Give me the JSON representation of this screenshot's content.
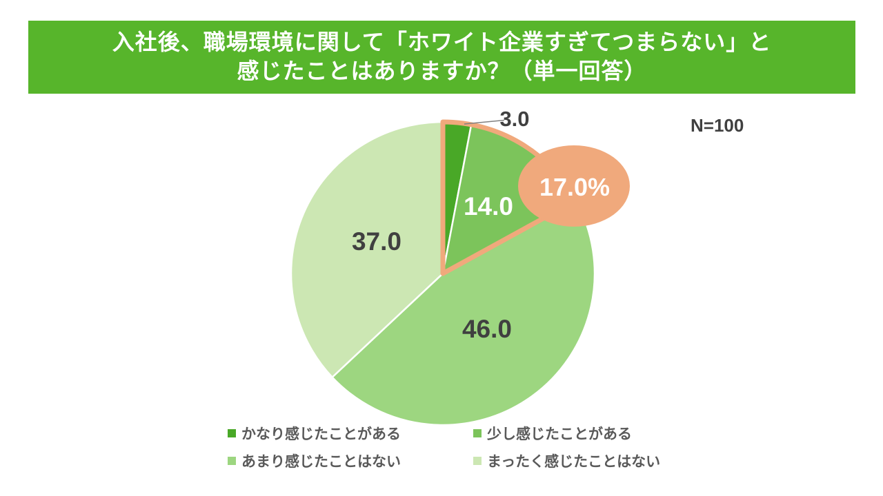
{
  "header": {
    "title_line1": "入社後、職場環境に関して「ホワイト企業すぎてつまらない」と",
    "title_line2": "感じたことはありますか？（単一回答）",
    "bg_color": "#57b52b",
    "text_color": "#ffffff"
  },
  "chart_data": {
    "type": "pie",
    "title": "入社後、職場環境に関して「ホワイト企業すぎてつまらない」と感じたことはありますか？（単一回答）",
    "sample_label": "N=100",
    "sample_size": 100,
    "start_angle_deg": -90,
    "direction": "clockwise",
    "slices": [
      {
        "label": "かなり感じたことがある",
        "value": 3.0,
        "display": "3.0",
        "color": "#49a827"
      },
      {
        "label": "少し感じたことがある",
        "value": 14.0,
        "display": "14.0",
        "color": "#7cc45b"
      },
      {
        "label": "あまり感じたことはない",
        "value": 46.0,
        "display": "46.0",
        "color": "#9dd680"
      },
      {
        "label": "まったく感じたことはない",
        "value": 37.0,
        "display": "37.0",
        "color": "#cce7b3"
      }
    ],
    "callout": {
      "text": "17.0%",
      "value": 17.0,
      "covers_slices": [
        0,
        1
      ],
      "color": "#f0a97c",
      "text_color": "#ffffff"
    },
    "legend_position": "bottom",
    "slice_divider_color": "#ffffff",
    "value_label_color": "#404040",
    "leader_line_color": "#808080"
  }
}
